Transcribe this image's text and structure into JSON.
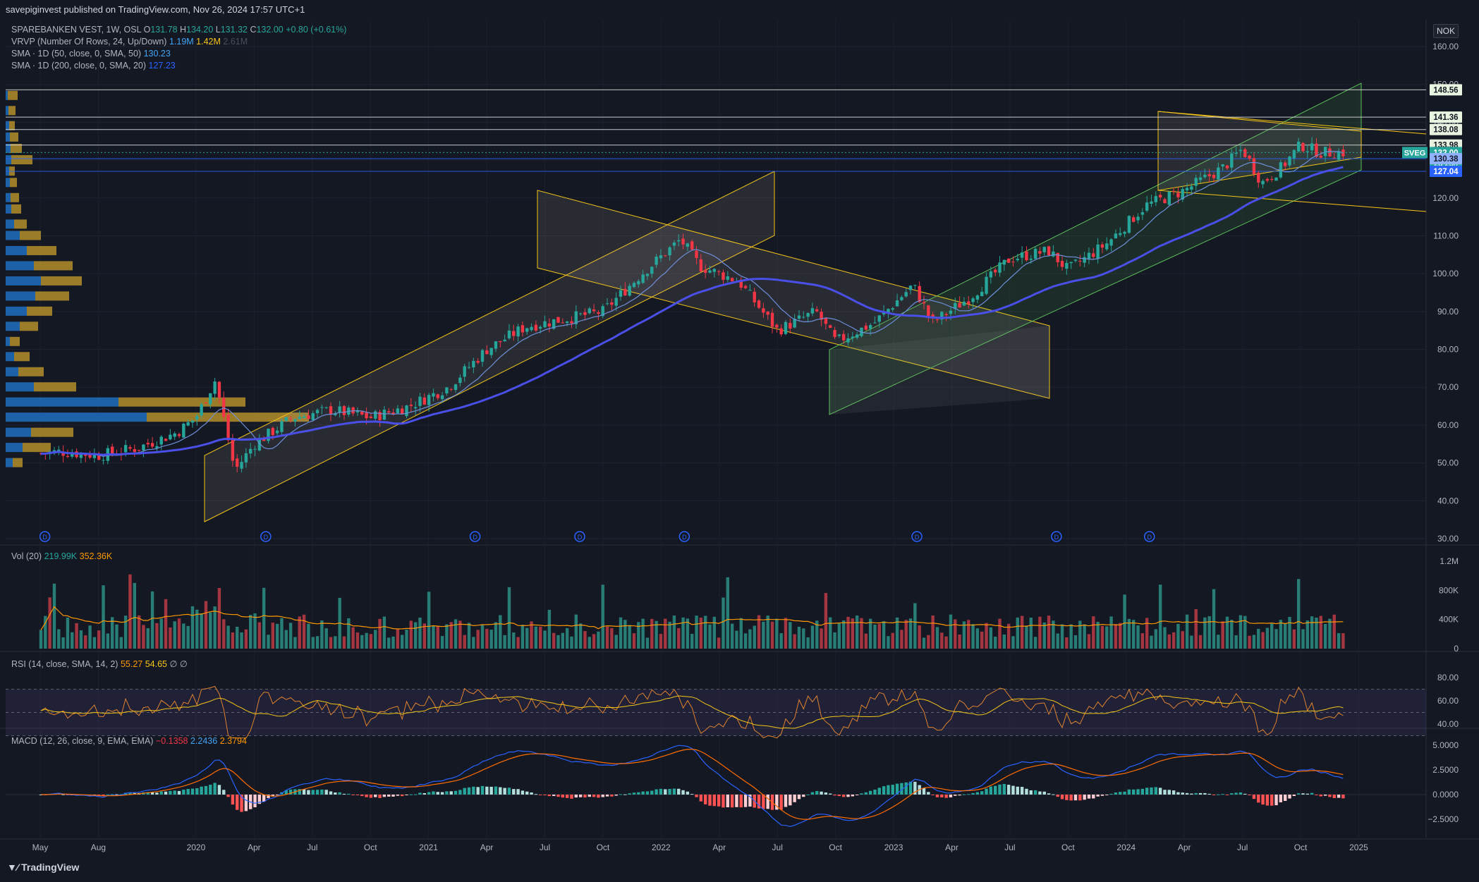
{
  "header": {
    "publisher": "savepiginvest published on TradingView.com, Nov 26, 2024 17:57 UTC+1"
  },
  "legend": {
    "symbol": "SPAREBANKEN VEST, 1W, OSL",
    "ohlc": {
      "o_label": "O",
      "o": "131.78",
      "h_label": "H",
      "h": "134.20",
      "l_label": "L",
      "l": "131.32",
      "c_label": "C",
      "c": "132.00",
      "change": "+0.80 (+0.61%)"
    },
    "vrvp": {
      "label": "VRVP (Number Of Rows, 24, Up/Down)",
      "up": "1.19M",
      "down": "1.42M",
      "total": "2.61M"
    },
    "sma50": {
      "label": "SMA · 1D (50, close, 0, SMA, 50)",
      "value": "130.23"
    },
    "sma200": {
      "label": "SMA · 1D (200, close, 0, SMA, 20)",
      "value": "127.23"
    }
  },
  "currency": "NOK",
  "volume_panel": {
    "label": "Vol (20)",
    "v1": "219.99K",
    "v2": "352.36K",
    "ticks": [
      "1.2M",
      "800K",
      "400K",
      "0"
    ]
  },
  "rsi_panel": {
    "label": "RSI (14, close, SMA, 14, 2)",
    "v1": "55.27",
    "v2": "54.65",
    "v3": "∅ ∅",
    "ticks": [
      "80.00",
      "60.00",
      "40.00"
    ]
  },
  "macd_panel": {
    "label": "MACD (12, 26, close, 9, EMA, EMA)",
    "v1": "−0.1358",
    "v2": "2.2436",
    "v3": "2.3794",
    "ticks": [
      "5.0000",
      "2.5000",
      "0.0000",
      "−2.5000"
    ]
  },
  "brand": "TradingView",
  "colors": {
    "up": "#26a69a",
    "down": "#f23645",
    "sma50": "#4a4fe8",
    "sma200": "#2962ff",
    "channel": "#f5c518",
    "green_channel": "#5bbf5b",
    "bg": "#141823"
  },
  "chart_data": {
    "type": "candlestick",
    "symbol": "SPAREBANKEN VEST",
    "interval": "1W",
    "exchange": "OSL",
    "y_axis": {
      "ticks": [
        160,
        150,
        140,
        130,
        120,
        110,
        100,
        90,
        80,
        70,
        60,
        50,
        40,
        30
      ],
      "labels": [
        "160.00",
        "150.00",
        "140.00",
        "130.00",
        "120.00",
        "110.00",
        "100.00",
        "90.00",
        "80.00",
        "70.00",
        "60.00",
        "50.00",
        "40.00",
        "30.00"
      ],
      "range": [
        28,
        165
      ]
    },
    "x_axis": {
      "labels": [
        "May",
        "Aug",
        "2020",
        "Apr",
        "Jul",
        "Oct",
        "2021",
        "Apr",
        "Jul",
        "Oct",
        "2022",
        "Apr",
        "Jul",
        "Oct",
        "2023",
        "Apr",
        "Jul",
        "Oct",
        "2024",
        "Apr",
        "Jul",
        "Oct",
        "2025"
      ]
    },
    "close_path": [
      [
        "2019-04",
        52
      ],
      [
        "2019-06",
        53
      ],
      [
        "2019-08",
        52
      ],
      [
        "2019-10",
        54
      ],
      [
        "2019-12",
        58
      ],
      [
        "2020-01",
        62
      ],
      [
        "2020-02",
        72
      ],
      [
        "2020-03",
        48
      ],
      [
        "2020-04",
        55
      ],
      [
        "2020-06",
        62
      ],
      [
        "2020-08",
        64
      ],
      [
        "2020-10",
        62
      ],
      [
        "2020-12",
        65
      ],
      [
        "2021-02",
        70
      ],
      [
        "2021-04",
        80
      ],
      [
        "2021-06",
        86
      ],
      [
        "2021-08",
        88
      ],
      [
        "2021-10",
        90
      ],
      [
        "2021-12",
        100
      ],
      [
        "2022-02",
        109
      ],
      [
        "2022-03",
        102
      ],
      [
        "2022-05",
        98
      ],
      [
        "2022-07",
        85
      ],
      [
        "2022-09",
        90
      ],
      [
        "2022-10",
        82
      ],
      [
        "2022-12",
        87
      ],
      [
        "2023-02",
        97
      ],
      [
        "2023-03",
        87
      ],
      [
        "2023-05",
        94
      ],
      [
        "2023-07",
        104
      ],
      [
        "2023-09",
        106
      ],
      [
        "2023-10",
        101
      ],
      [
        "2023-12",
        108
      ],
      [
        "2024-02",
        118
      ],
      [
        "2024-04",
        122
      ],
      [
        "2024-06",
        128
      ],
      [
        "2024-07",
        133
      ],
      [
        "2024-08",
        124
      ],
      [
        "2024-09",
        128
      ],
      [
        "2024-10",
        134
      ],
      [
        "2024-11",
        132
      ]
    ],
    "price_levels": [
      {
        "value": 148.56,
        "label": "148.56"
      },
      {
        "value": 141.36,
        "label": "141.36"
      },
      {
        "value": 138.08,
        "label": "138.08"
      },
      {
        "value": 133.98,
        "label": "133.98"
      },
      {
        "value": 132.0,
        "label": "132.00",
        "tag": "SVEG",
        "countdown": "2d 23h"
      },
      {
        "value": 130.38,
        "label": "130.38"
      },
      {
        "value": 127.04,
        "label": "127.04"
      }
    ],
    "dividend_markers": [
      "D",
      "D",
      "D",
      "D",
      "D",
      "D",
      "D",
      "D"
    ]
  }
}
